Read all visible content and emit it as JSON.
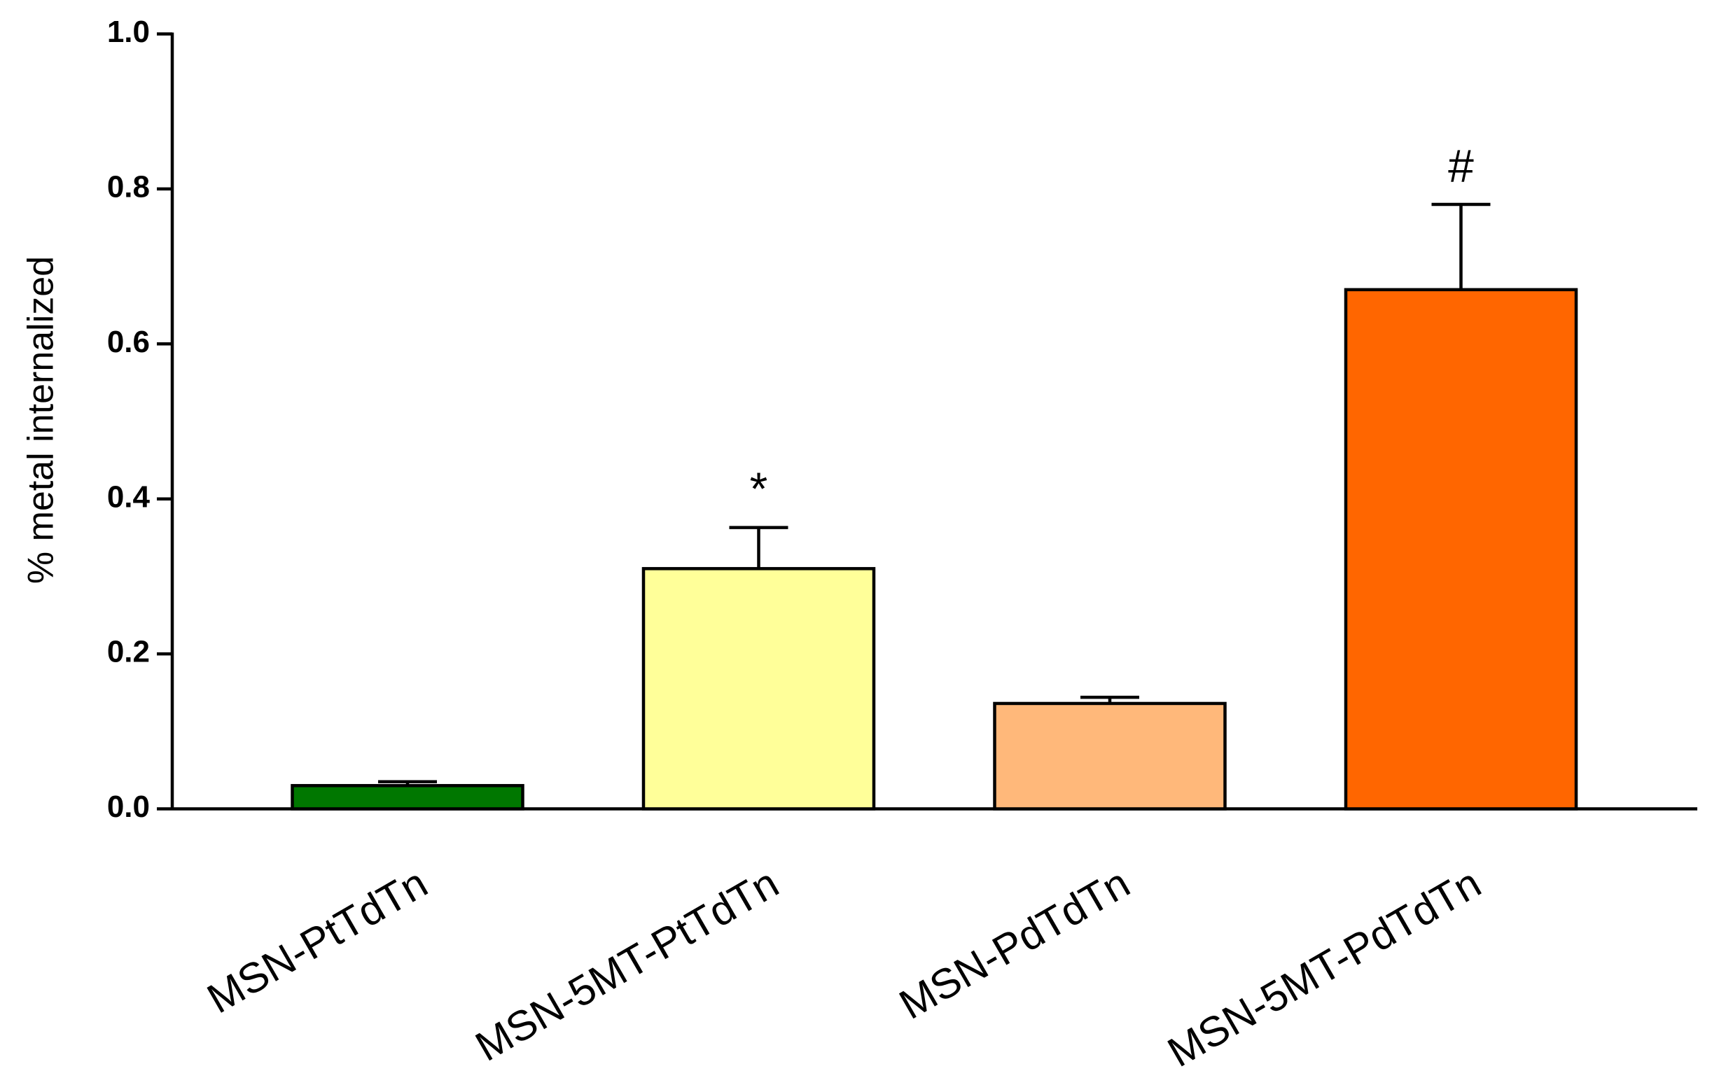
{
  "chart_data": {
    "type": "bar",
    "ylabel": "% metal internalized",
    "categories": [
      "MSN-PtTdTn",
      "MSN-5MT-PtTdTn",
      "MSN-PdTdTn",
      "MSN-5MT-PdTdTn"
    ],
    "values": [
      0.03,
      0.31,
      0.136,
      0.67
    ],
    "errors": [
      0.005,
      0.053,
      0.008,
      0.11
    ],
    "colors": [
      "#007700",
      "#ffff99",
      "#ffb87a",
      "#ff6600"
    ],
    "annotations": [
      null,
      "*",
      null,
      "#"
    ],
    "ylim": [
      0,
      1.0
    ],
    "yticks": [
      {
        "value": 0,
        "label": "0.0"
      },
      0.2,
      0.4,
      0.6,
      0.8,
      {
        "value": 1.0,
        "label": "1.0"
      }
    ],
    "grid": false
  }
}
